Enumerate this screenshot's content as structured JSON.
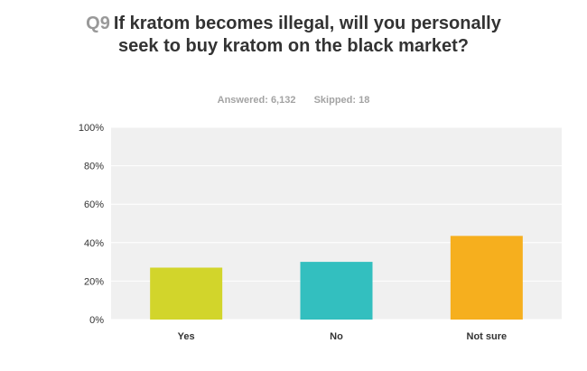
{
  "question": {
    "number": "Q9",
    "text": "If kratom becomes illegal, will you personally seek to buy kratom on the black market?"
  },
  "stats": {
    "answered_label": "Answered:",
    "answered_value": "6,132",
    "skipped_label": "Skipped:",
    "skipped_value": "18"
  },
  "colors": {
    "plot_background": "#f0f0f0",
    "gridline": "#ffffff",
    "axis_text": "#333333"
  },
  "chart_data": {
    "type": "bar",
    "categories": [
      "Yes",
      "No",
      "Not sure"
    ],
    "values": [
      27,
      30,
      43.5
    ],
    "colors": [
      "#d2d52b",
      "#33bfbf",
      "#f6af1e"
    ],
    "ylim": [
      0,
      100
    ],
    "yticks": [
      0,
      20,
      40,
      60,
      80,
      100
    ],
    "ytick_labels": [
      "0%",
      "20%",
      "40%",
      "60%",
      "80%",
      "100%"
    ],
    "title": "If kratom becomes illegal, will you personally seek to buy kratom on the black market?",
    "xlabel": "",
    "ylabel": "",
    "grid": true,
    "legend": "none"
  }
}
